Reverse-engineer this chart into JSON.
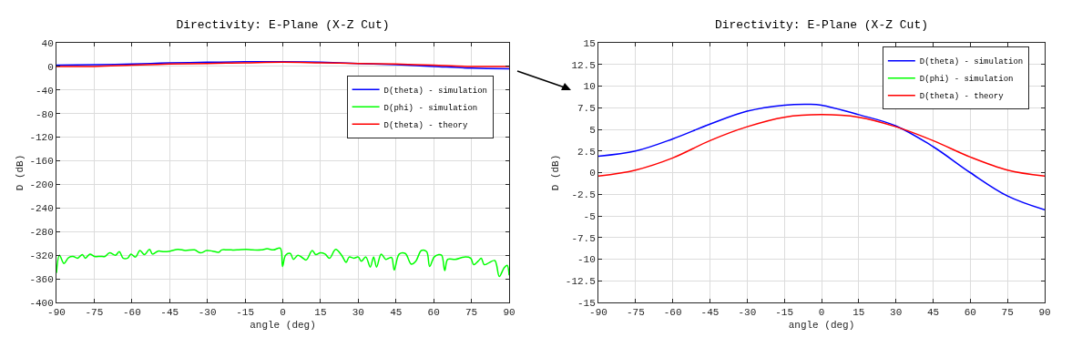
{
  "chart_data": [
    {
      "type": "line",
      "title": "Directivity: E-Plane (X-Z Cut)",
      "xlabel": "angle (deg)",
      "ylabel": "D (dB)",
      "xlim": [
        -90,
        90
      ],
      "xticks": [
        -90,
        -75,
        -60,
        -45,
        -30,
        -15,
        0,
        15,
        30,
        45,
        60,
        75,
        90
      ],
      "ylim": [
        -400,
        40
      ],
      "yticks": [
        -400,
        -360,
        -320,
        -280,
        -240,
        -200,
        -160,
        -120,
        -80,
        -40,
        0,
        40
      ],
      "grid": true,
      "legend": "top right",
      "marker": "none",
      "line_style": "solid",
      "series": [
        {
          "name": "D(theta) - simulation",
          "color": "#0000ff",
          "x": [
            -90,
            -75,
            -60,
            -45,
            -30,
            -15,
            -5,
            0,
            15,
            30,
            45,
            60,
            75,
            90
          ],
          "values": [
            2,
            3,
            4,
            6,
            7,
            8,
            8,
            8,
            7,
            5,
            3,
            0,
            -3,
            -4
          ]
        },
        {
          "name": "D(phi) - simulation",
          "color": "#00ff00",
          "x": [
            -90,
            -88.8,
            -87,
            -85.2,
            -83.4,
            -81.6,
            -79.7,
            -78.5,
            -76.7,
            -74.9,
            -72.5,
            -70.7,
            -68.9,
            -66.5,
            -65,
            -63.5,
            -61.7,
            -60.4,
            -58.6,
            -56.8,
            -55,
            -53,
            -51.8,
            -49.6,
            -47.2,
            -44.8,
            -41.7,
            -38.7,
            -35.1,
            -32.7,
            -30.3,
            -27.9,
            -25.5,
            -24.3,
            -21.8,
            -18.2,
            -14.6,
            -12.2,
            -8.6,
            -6.2,
            -3.8,
            -1,
            -0.1,
            1.1,
            3,
            4.2,
            6,
            7.7,
            9.3,
            11.7,
            13.1,
            14.9,
            16.8,
            18.6,
            21,
            23.4,
            25.2,
            26.4,
            28.2,
            30,
            31.2,
            33,
            34.8,
            36.1,
            37.3,
            39.1,
            40.9,
            42.1,
            43.3,
            44.3,
            46.3,
            48.7,
            51.1,
            52.9,
            55.1,
            57.2,
            58.4,
            60.2,
            62,
            63.2,
            64.4,
            65.6,
            68.6,
            72.2,
            74.7,
            75.9,
            77.7,
            78.9,
            80.1,
            81.9,
            84.3,
            86.1,
            87.9,
            89.2,
            90
          ],
          "values": [
            -350,
            -320,
            -334,
            -324,
            -322,
            -325,
            -319,
            -325,
            -318,
            -322,
            -322,
            -322,
            -316,
            -320,
            -314,
            -325,
            -325,
            -318,
            -323,
            -312,
            -319,
            -310,
            -318,
            -313,
            -314,
            -313,
            -310,
            -312,
            -311,
            -316,
            -312,
            -313,
            -315,
            -311,
            -311,
            -311,
            -310,
            -311,
            -311,
            -309,
            -311,
            -308,
            -339,
            -320,
            -317,
            -327,
            -320,
            -324,
            -328,
            -312,
            -319,
            -316,
            -318,
            -325,
            -310,
            -320,
            -332,
            -323,
            -325,
            -323,
            -330,
            -323,
            -340,
            -323,
            -340,
            -318,
            -327,
            -325,
            -324,
            -345,
            -318,
            -317,
            -335,
            -330,
            -312,
            -314,
            -339,
            -323,
            -319,
            -320,
            -346,
            -327,
            -327,
            -323,
            -325,
            -336,
            -330,
            -325,
            -336,
            -333,
            -329,
            -356,
            -342,
            -337,
            -354
          ]
        },
        {
          "name": "D(theta) - theory",
          "color": "#ff0000",
          "x": [
            -90,
            -75,
            -60,
            -45,
            -30,
            -15,
            0,
            15,
            30,
            45,
            60,
            75,
            90
          ],
          "values": [
            0,
            0,
            2,
            4,
            5,
            6,
            7,
            6,
            5,
            4,
            2,
            0,
            0
          ]
        }
      ]
    },
    {
      "type": "line",
      "title": "Directivity: E-Plane (X-Z Cut)",
      "xlabel": "angle (deg)",
      "ylabel": "D (dB)",
      "xlim": [
        -90,
        90
      ],
      "xticks": [
        -90,
        -75,
        -60,
        -45,
        -30,
        -15,
        0,
        15,
        30,
        45,
        60,
        75,
        90
      ],
      "ylim": [
        -15,
        15
      ],
      "yticks": [
        -15,
        -12.5,
        -10,
        -7.5,
        -5,
        -2.5,
        0,
        2.5,
        5,
        7.5,
        10,
        12.5,
        15
      ],
      "grid": true,
      "legend": "top right",
      "marker": "none",
      "line_style": "solid",
      "series": [
        {
          "name": "D(theta) - simulation",
          "color": "#0000ff",
          "x": [
            -90,
            -75,
            -60,
            -45,
            -30,
            -15,
            -5,
            0,
            15,
            30,
            45,
            60,
            75,
            90
          ],
          "values": [
            1.9,
            2.5,
            3.9,
            5.6,
            7.1,
            7.8,
            7.9,
            7.8,
            6.7,
            5.4,
            3.0,
            0.0,
            -2.7,
            -4.3
          ]
        },
        {
          "name": "D(phi) - simulation",
          "color": "#00ff00"
        },
        {
          "name": "D(theta) - theory",
          "color": "#ff0000",
          "x": [
            -90,
            -75,
            -60,
            -45,
            -30,
            -15,
            0,
            15,
            30,
            45,
            60,
            75,
            90
          ],
          "values": [
            -0.4,
            0.3,
            1.7,
            3.7,
            5.3,
            6.4,
            6.7,
            6.4,
            5.3,
            3.7,
            1.8,
            0.3,
            -0.4
          ]
        }
      ]
    }
  ]
}
